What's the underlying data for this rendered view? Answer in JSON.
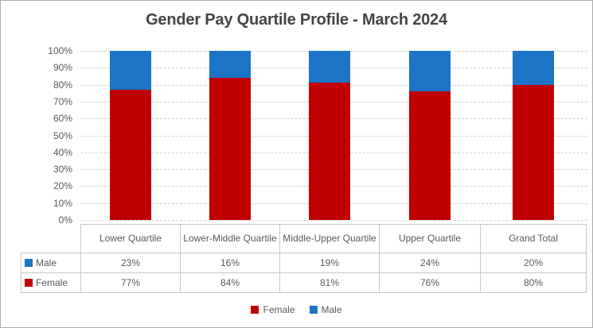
{
  "title": "Gender Pay Quartile Profile - March 2024",
  "colors": {
    "female": "#C00000",
    "male": "#1B74C5",
    "grid": "#D2D2D2",
    "table_border": "#C8C8C8",
    "text": "#595959",
    "title_text": "#444444"
  },
  "chart_data": {
    "type": "bar",
    "subtype": "100-percent-stacked-column",
    "title": "Gender Pay Quartile Profile - March 2024",
    "categories": [
      "Lower Quartile",
      "Lower-Middle Quartile",
      "Middle-Upper Quartile",
      "Upper Quartile",
      "Grand Total"
    ],
    "series": [
      {
        "name": "Female",
        "color": "#C00000",
        "values": [
          77,
          84,
          81,
          76,
          80
        ]
      },
      {
        "name": "Male",
        "color": "#1B74C5",
        "values": [
          23,
          16,
          19,
          24,
          20
        ]
      }
    ],
    "value_unit": "%",
    "xlabel": "",
    "ylabel": "",
    "ylim": [
      0,
      100
    ],
    "y_ticks": [
      "0%",
      "10%",
      "20%",
      "30%",
      "40%",
      "50%",
      "60%",
      "70%",
      "80%",
      "90%",
      "100%"
    ],
    "grid": "horizontal-dashed",
    "legend_position": "bottom",
    "legend_order": [
      "Female",
      "Male"
    ]
  },
  "data_table": {
    "column_headers": [
      "Lower Quartile",
      "Lower-Middle Quartile",
      "Middle-Upper Quartile",
      "Upper Quartile",
      "Grand Total"
    ],
    "rows": [
      {
        "label": "Male",
        "swatch_color": "#1B74C5",
        "values": [
          "23%",
          "16%",
          "19%",
          "24%",
          "20%"
        ]
      },
      {
        "label": "Female",
        "swatch_color": "#C00000",
        "values": [
          "77%",
          "84%",
          "81%",
          "76%",
          "80%"
        ]
      }
    ]
  },
  "legend": [
    {
      "label": "Female",
      "color": "#C00000"
    },
    {
      "label": "Male",
      "color": "#1B74C5"
    }
  ]
}
